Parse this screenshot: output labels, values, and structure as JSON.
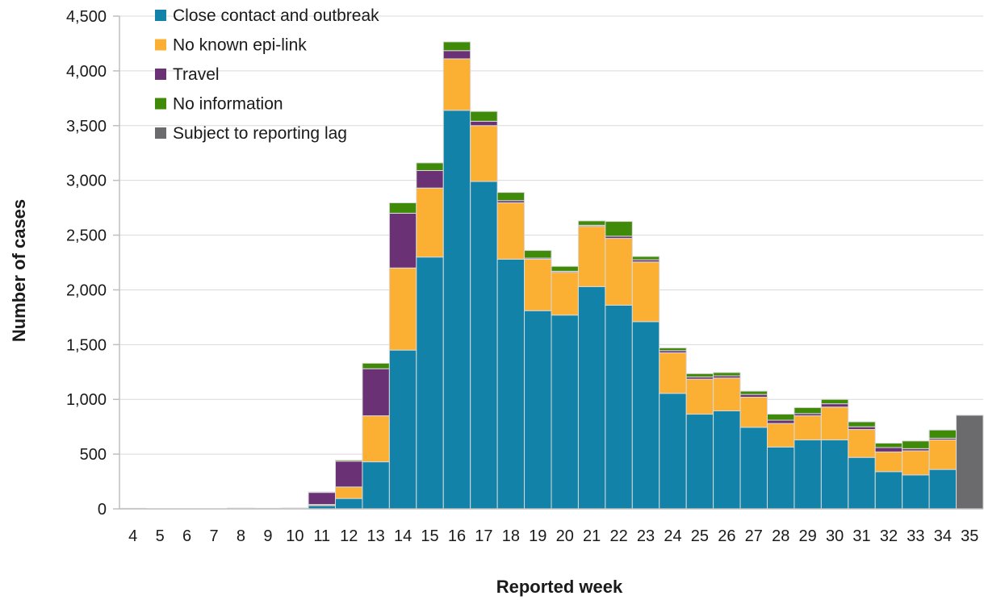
{
  "chart_data": {
    "type": "bar",
    "stacked": true,
    "xlabel": "Reported week",
    "ylabel": "Number of cases",
    "ylim": [
      0,
      4500
    ],
    "yticks": [
      0,
      500,
      1000,
      1500,
      2000,
      2500,
      3000,
      3500,
      4000,
      4500
    ],
    "ytick_labels": [
      "0",
      "500",
      "1,000",
      "1,500",
      "2,000",
      "2,500",
      "3,000",
      "3,500",
      "4,000",
      "4,500"
    ],
    "grid": true,
    "legend_position": "top-left",
    "categories": [
      "4",
      "5",
      "6",
      "7",
      "8",
      "9",
      "10",
      "11",
      "12",
      "13",
      "14",
      "15",
      "16",
      "17",
      "18",
      "19",
      "20",
      "21",
      "22",
      "23",
      "24",
      "25",
      "26",
      "27",
      "28",
      "29",
      "30",
      "31",
      "32",
      "33",
      "34",
      "35"
    ],
    "series": [
      {
        "name": "Close contact and outbreak",
        "color": "#1282a9",
        "values": [
          0,
          0,
          0,
          0,
          0,
          0,
          0,
          30,
          95,
          430,
          1450,
          2300,
          3640,
          2990,
          2280,
          1810,
          1770,
          2030,
          1860,
          1710,
          1055,
          865,
          895,
          745,
          565,
          630,
          630,
          470,
          340,
          310,
          360,
          0
        ]
      },
      {
        "name": "No known epi-link",
        "color": "#fbb034",
        "values": [
          0,
          0,
          0,
          0,
          0,
          0,
          0,
          10,
          105,
          420,
          750,
          630,
          470,
          510,
          515,
          470,
          390,
          550,
          610,
          545,
          370,
          320,
          300,
          275,
          215,
          220,
          300,
          255,
          180,
          220,
          270,
          0
        ]
      },
      {
        "name": "Travel",
        "color": "#6a3275",
        "values": [
          3,
          0,
          0,
          0,
          5,
          3,
          5,
          110,
          235,
          430,
          500,
          160,
          75,
          40,
          20,
          10,
          10,
          10,
          20,
          20,
          20,
          20,
          20,
          25,
          30,
          20,
          30,
          25,
          40,
          20,
          15,
          0
        ]
      },
      {
        "name": "No information",
        "color": "#3f8a08",
        "values": [
          2,
          0,
          0,
          0,
          2,
          2,
          3,
          5,
          10,
          50,
          95,
          70,
          80,
          90,
          75,
          70,
          45,
          40,
          135,
          30,
          25,
          30,
          30,
          30,
          55,
          55,
          40,
          45,
          40,
          70,
          75,
          0
        ]
      },
      {
        "name": "Subject to reporting lag",
        "color": "#6b6b6d",
        "values": [
          0,
          0,
          0,
          0,
          0,
          0,
          0,
          0,
          0,
          0,
          0,
          0,
          0,
          0,
          0,
          0,
          0,
          0,
          0,
          0,
          0,
          0,
          0,
          0,
          0,
          0,
          0,
          0,
          0,
          0,
          0,
          855
        ]
      }
    ]
  }
}
